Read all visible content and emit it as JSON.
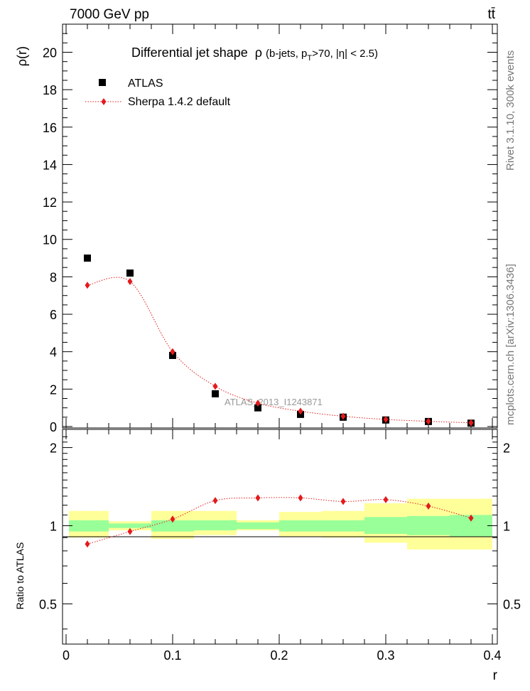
{
  "header": {
    "energy_label": "7000 GeV pp",
    "process_label": "tt̄"
  },
  "side_labels": {
    "rivet": "Rivet 3.1.10,  300k events",
    "mcplots": "mcplots.cern.ch [arXiv:1306.3436]"
  },
  "colors": {
    "data": "#000000",
    "mc": "#e31a1c",
    "band_inner": "#99ff99",
    "band_outer": "#ffff99"
  },
  "chart_data": [
    {
      "type": "scatter",
      "panel": "main",
      "title_main": "Differential jet shape",
      "title_rho": "ρ",
      "title_open": "(b-jets, p",
      "title_sub": "T",
      "title_rest": ">70, |η| < 2.5)",
      "ylabel": "ρ(r)",
      "watermark": "ATLAS_2013_I1243871",
      "xlim": [
        0,
        0.4
      ],
      "ylim": [
        0,
        21.5
      ],
      "y_ticks": [
        "0",
        "2",
        "4",
        "6",
        "8",
        "10",
        "12",
        "14",
        "16",
        "18",
        "20"
      ],
      "legend": {
        "position": "top-left"
      },
      "series": [
        {
          "name": "ATLAS",
          "style": "square-markers",
          "x": [
            0.02,
            0.06,
            0.1,
            0.14,
            0.18,
            0.22,
            0.26,
            0.3,
            0.34,
            0.38
          ],
          "y": [
            9.0,
            8.2,
            3.8,
            1.75,
            1.0,
            0.65,
            0.5,
            0.35,
            0.27,
            0.18
          ]
        },
        {
          "name": "Sherpa 1.4.2 default",
          "style": "diamond-dotted-line",
          "x": [
            0.02,
            0.06,
            0.1,
            0.14,
            0.18,
            0.22,
            0.26,
            0.3,
            0.34,
            0.38
          ],
          "y": [
            7.55,
            7.75,
            4.0,
            2.15,
            1.25,
            0.82,
            0.55,
            0.38,
            0.28,
            0.2
          ]
        }
      ]
    },
    {
      "type": "scatter",
      "panel": "ratio",
      "ylabel": "Ratio to ATLAS",
      "xlabel": "r",
      "xlim": [
        0,
        0.4
      ],
      "ylim": [
        0.35,
        2.35
      ],
      "x_ticks": [
        "0",
        "0.1",
        "0.2",
        "0.3",
        "0.4"
      ],
      "y_ticks": [
        "0.5",
        "1",
        "2"
      ],
      "bands": {
        "edges": [
          0.0,
          0.04,
          0.08,
          0.12,
          0.16,
          0.2,
          0.24,
          0.28,
          0.32,
          0.36,
          0.4
        ],
        "inner_low": [
          0.95,
          0.98,
          0.95,
          0.96,
          0.97,
          0.95,
          0.95,
          0.93,
          0.92,
          0.91
        ],
        "inner_high": [
          1.05,
          1.02,
          1.05,
          1.05,
          1.03,
          1.05,
          1.05,
          1.08,
          1.09,
          1.1
        ],
        "outer_low": [
          0.9,
          0.96,
          0.89,
          0.92,
          0.96,
          0.91,
          0.9,
          0.86,
          0.81,
          0.81
        ],
        "outer_high": [
          1.14,
          1.04,
          1.14,
          1.14,
          1.05,
          1.13,
          1.14,
          1.22,
          1.27,
          1.27
        ]
      },
      "series": [
        {
          "name": "Sherpa 1.4.2 default",
          "x": [
            0.02,
            0.06,
            0.1,
            0.14,
            0.18,
            0.22,
            0.26,
            0.3,
            0.34,
            0.38
          ],
          "y": [
            0.85,
            0.95,
            1.06,
            1.25,
            1.28,
            1.28,
            1.24,
            1.26,
            1.19,
            1.07
          ]
        }
      ]
    }
  ]
}
